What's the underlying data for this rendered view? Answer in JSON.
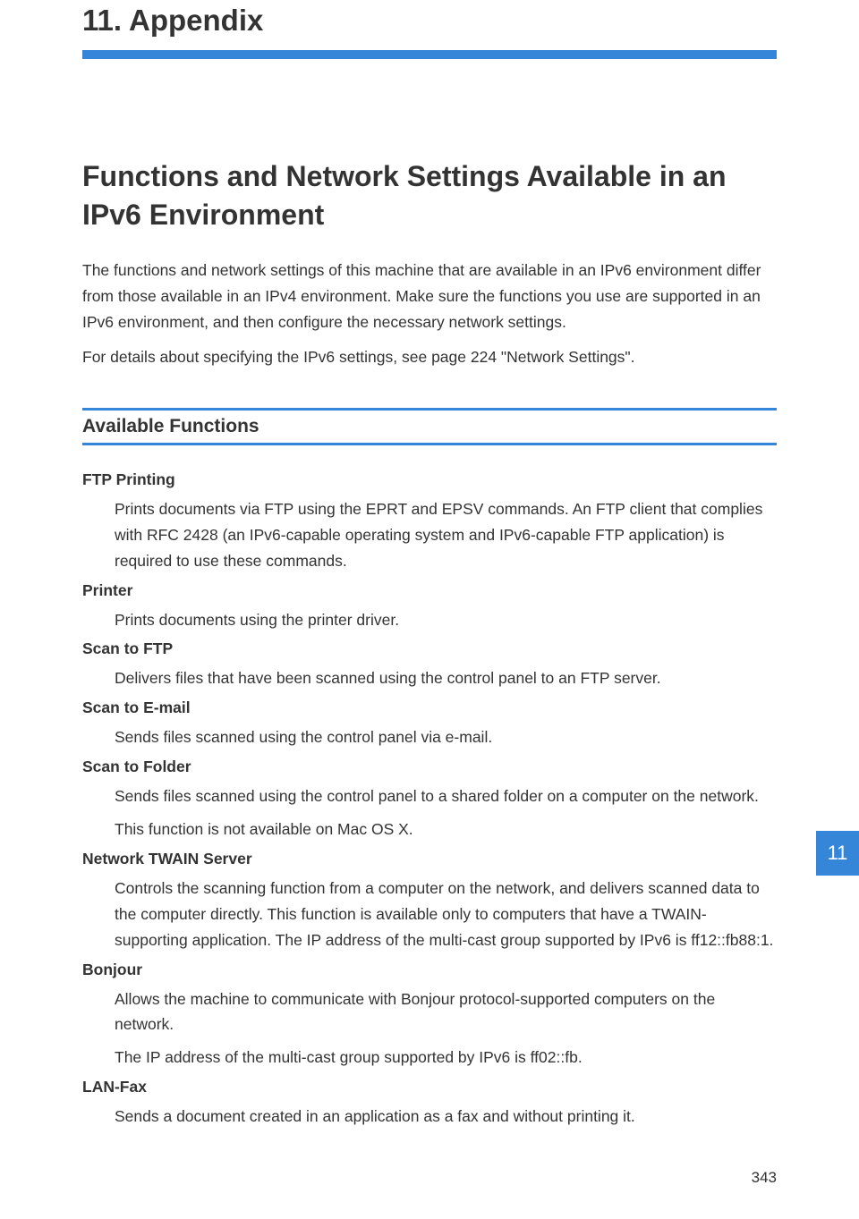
{
  "chapter": {
    "title": "11. Appendix"
  },
  "rules": {
    "thick_color": "#3585d8",
    "thin_color": "#3585d8"
  },
  "section": {
    "title": "Functions and Network Settings Available in an IPv6 Environment"
  },
  "intro": {
    "p1": "The functions and network settings of this machine that are available in an IPv6 environment differ from those available in an IPv4 environment. Make sure the functions you use are supported in an IPv6 environment, and then configure the necessary network settings.",
    "p2": "For details about specifying the IPv6 settings, see page 224 \"Network Settings\"."
  },
  "subheading": "Available Functions",
  "functions": [
    {
      "label": "FTP Printing",
      "desc": [
        "Prints documents via FTP using the EPRT and EPSV commands. An FTP client that complies with RFC 2428 (an IPv6-capable operating system and IPv6-capable FTP application) is required to use these commands."
      ]
    },
    {
      "label": "Printer",
      "desc": [
        "Prints documents using the printer driver."
      ]
    },
    {
      "label": "Scan to FTP",
      "desc": [
        "Delivers files that have been scanned using the control panel to an FTP server."
      ]
    },
    {
      "label": "Scan to E-mail",
      "desc": [
        "Sends files scanned using the control panel via e-mail."
      ]
    },
    {
      "label": "Scan to Folder",
      "desc": [
        "Sends files scanned using the control panel to a shared folder on a computer on the network.",
        "This function is not available on Mac OS X."
      ]
    },
    {
      "label": "Network TWAIN Server",
      "desc": [
        "Controls the scanning function from a computer on the network, and delivers scanned data to the computer directly. This function is available only to computers that have a TWAIN-supporting application. The IP address of the multi-cast group supported by IPv6 is ff12::fb88:1."
      ]
    },
    {
      "label": "Bonjour",
      "desc": [
        "Allows the machine to communicate with Bonjour protocol-supported computers on the network.",
        "The IP address of the multi-cast group supported by IPv6 is ff02::fb."
      ]
    },
    {
      "label": "LAN-Fax",
      "desc": [
        "Sends a document created in an application as a fax and without printing it."
      ]
    }
  ],
  "sidetab": {
    "number": "11",
    "bg": "#3585d8",
    "color": "#ffffff"
  },
  "page_number": "343"
}
